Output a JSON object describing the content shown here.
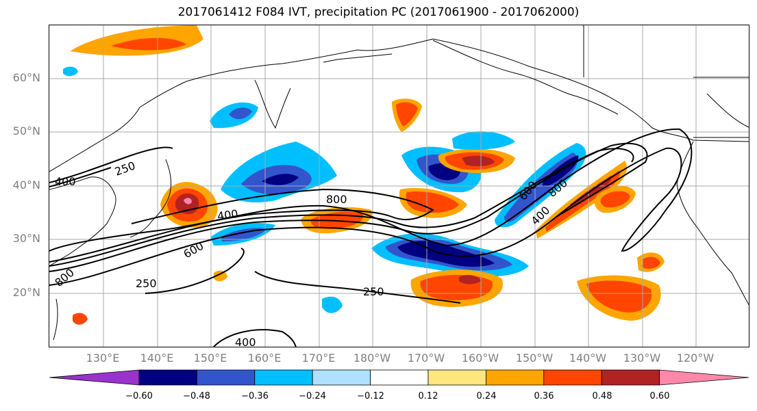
{
  "title": "2017061412 F084 IVT, precipitation PC (2017061900 - 2017062000)",
  "map": {
    "lat_labels": [
      "60°N",
      "50°N",
      "40°N",
      "30°N",
      "20°N"
    ],
    "lon_labels": [
      "130°E",
      "140°E",
      "150°E",
      "160°E",
      "170°E",
      "180°W",
      "170°W",
      "160°W",
      "150°W",
      "140°W",
      "130°W",
      "120°W"
    ],
    "ivt_contour_labels": [
      "250",
      "400",
      "400",
      "600",
      "800",
      "800",
      "600",
      "800",
      "400",
      "250",
      "250",
      "400"
    ]
  },
  "colorbar": {
    "ticks": [
      "−0.60",
      "−0.48",
      "−0.36",
      "−0.24",
      "−0.12",
      "0.12",
      "0.24",
      "0.36",
      "0.48",
      "0.60"
    ],
    "colors": [
      "#9933cc",
      "#000080",
      "#3355cc",
      "#00bfff",
      "#b0e0ff",
      "#ffffff",
      "#ffe680",
      "#ffa500",
      "#ff4500",
      "#b22222",
      "#ff88aa"
    ]
  }
}
